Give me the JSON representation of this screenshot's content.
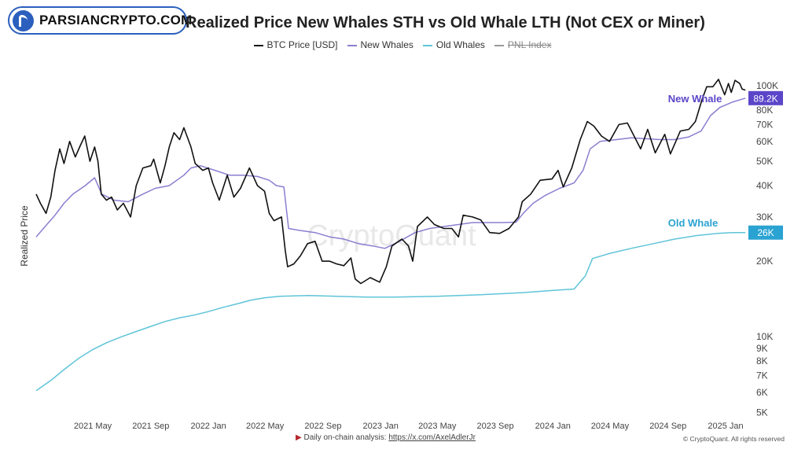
{
  "logo": {
    "text": "PARSIANCRYPTO.COM"
  },
  "chart_data": {
    "type": "line",
    "title": "Realized Price New Whales STH vs Old Whale LTH (Not CEX or Miner)",
    "ylabel": "Realized Price",
    "yscale": "log",
    "ylim": [
      4800,
      118000
    ],
    "xlim": [
      "2021-01-01",
      "2025-02-15"
    ],
    "x_ticks": [
      {
        "date": "2021-05-01",
        "label": "2021 May"
      },
      {
        "date": "2021-09-01",
        "label": "2021 Sep"
      },
      {
        "date": "2022-01-01",
        "label": "2022 Jan"
      },
      {
        "date": "2022-05-01",
        "label": "2022 May"
      },
      {
        "date": "2022-09-01",
        "label": "2022 Sep"
      },
      {
        "date": "2023-01-01",
        "label": "2023 Jan"
      },
      {
        "date": "2023-05-01",
        "label": "2023 May"
      },
      {
        "date": "2023-09-01",
        "label": "2023 Sep"
      },
      {
        "date": "2024-01-01",
        "label": "2024 Jan"
      },
      {
        "date": "2024-05-01",
        "label": "2024 May"
      },
      {
        "date": "2024-09-01",
        "label": "2024 Sep"
      },
      {
        "date": "2025-01-01",
        "label": "2025 Jan"
      }
    ],
    "y_ticks": [
      {
        "value": 100000,
        "label": "100K"
      },
      {
        "value": 80000,
        "label": "80K"
      },
      {
        "value": 70000,
        "label": "70K"
      },
      {
        "value": 60000,
        "label": "60K"
      },
      {
        "value": 50000,
        "label": "50K"
      },
      {
        "value": 40000,
        "label": "40K"
      },
      {
        "value": 30000,
        "label": "30K"
      },
      {
        "value": 20000,
        "label": "20K"
      },
      {
        "value": 10000,
        "label": "10K"
      },
      {
        "value": 9000,
        "label": "9K"
      },
      {
        "value": 8000,
        "label": "8K"
      },
      {
        "value": 7000,
        "label": "7K"
      },
      {
        "value": 6000,
        "label": "6K"
      },
      {
        "value": 5000,
        "label": "5K"
      }
    ],
    "legend": [
      {
        "name": "BTC Price [USD]",
        "color": "#111111",
        "enabled": true
      },
      {
        "name": "New Whales",
        "color": "#8a7fd0",
        "enabled": true
      },
      {
        "name": "Old Whales",
        "color": "#5fc4d8",
        "enabled": true
      },
      {
        "name": "PNL Index",
        "color": "#999999",
        "enabled": false
      }
    ],
    "series": [
      {
        "name": "BTC Price [USD]",
        "color": "#111111",
        "points": [
          [
            "2021-01-01",
            37000
          ],
          [
            "2021-01-10",
            34000
          ],
          [
            "2021-01-22",
            31000
          ],
          [
            "2021-02-01",
            36000
          ],
          [
            "2021-02-10",
            46000
          ],
          [
            "2021-02-20",
            56000
          ],
          [
            "2021-03-01",
            49000
          ],
          [
            "2021-03-13",
            60000
          ],
          [
            "2021-03-25",
            52000
          ],
          [
            "2021-04-05",
            58000
          ],
          [
            "2021-04-14",
            63000
          ],
          [
            "2021-04-25",
            50000
          ],
          [
            "2021-05-05",
            57000
          ],
          [
            "2021-05-12",
            50000
          ],
          [
            "2021-05-19",
            37000
          ],
          [
            "2021-05-30",
            35000
          ],
          [
            "2021-06-10",
            36000
          ],
          [
            "2021-06-22",
            32000
          ],
          [
            "2021-07-05",
            34000
          ],
          [
            "2021-07-20",
            30000
          ],
          [
            "2021-08-01",
            40000
          ],
          [
            "2021-08-15",
            47000
          ],
          [
            "2021-09-01",
            48000
          ],
          [
            "2021-09-07",
            51000
          ],
          [
            "2021-09-21",
            41000
          ],
          [
            "2021-10-01",
            48000
          ],
          [
            "2021-10-10",
            57000
          ],
          [
            "2021-10-20",
            65000
          ],
          [
            "2021-11-01",
            61000
          ],
          [
            "2021-11-10",
            68000
          ],
          [
            "2021-11-25",
            57000
          ],
          [
            "2021-12-04",
            49000
          ],
          [
            "2021-12-20",
            46000
          ],
          [
            "2022-01-01",
            47000
          ],
          [
            "2022-01-10",
            41000
          ],
          [
            "2022-01-24",
            35000
          ],
          [
            "2022-02-10",
            44000
          ],
          [
            "2022-02-24",
            36000
          ],
          [
            "2022-03-10",
            39000
          ],
          [
            "2022-03-29",
            47000
          ],
          [
            "2022-04-15",
            40000
          ],
          [
            "2022-04-30",
            38000
          ],
          [
            "2022-05-10",
            31000
          ],
          [
            "2022-05-20",
            29000
          ],
          [
            "2022-06-05",
            30000
          ],
          [
            "2022-06-13",
            22000
          ],
          [
            "2022-06-18",
            19000
          ],
          [
            "2022-07-01",
            19500
          ],
          [
            "2022-07-15",
            21000
          ],
          [
            "2022-07-30",
            23500
          ],
          [
            "2022-08-15",
            24000
          ],
          [
            "2022-08-30",
            20000
          ],
          [
            "2022-09-15",
            20000
          ],
          [
            "2022-09-30",
            19500
          ],
          [
            "2022-10-15",
            19200
          ],
          [
            "2022-10-30",
            20600
          ],
          [
            "2022-11-08",
            17000
          ],
          [
            "2022-11-20",
            16300
          ],
          [
            "2022-12-10",
            17200
          ],
          [
            "2022-12-30",
            16500
          ],
          [
            "2023-01-13",
            19000
          ],
          [
            "2023-01-25",
            23000
          ],
          [
            "2023-02-15",
            24500
          ],
          [
            "2023-03-01",
            23000
          ],
          [
            "2023-03-10",
            20000
          ],
          [
            "2023-03-20",
            27500
          ],
          [
            "2023-04-10",
            30000
          ],
          [
            "2023-04-25",
            28000
          ],
          [
            "2023-05-15",
            27000
          ],
          [
            "2023-06-01",
            27000
          ],
          [
            "2023-06-15",
            25000
          ],
          [
            "2023-06-25",
            30500
          ],
          [
            "2023-07-15",
            30000
          ],
          [
            "2023-08-01",
            29200
          ],
          [
            "2023-08-20",
            26000
          ],
          [
            "2023-09-10",
            25800
          ],
          [
            "2023-09-30",
            27000
          ],
          [
            "2023-10-20",
            30000
          ],
          [
            "2023-10-28",
            34500
          ],
          [
            "2023-11-15",
            37000
          ],
          [
            "2023-12-05",
            42000
          ],
          [
            "2023-12-30",
            42500
          ],
          [
            "2024-01-12",
            46000
          ],
          [
            "2024-01-23",
            39500
          ],
          [
            "2024-02-10",
            47000
          ],
          [
            "2024-02-28",
            61000
          ],
          [
            "2024-03-14",
            72000
          ],
          [
            "2024-03-28",
            69000
          ],
          [
            "2024-04-13",
            63000
          ],
          [
            "2024-04-30",
            60000
          ],
          [
            "2024-05-20",
            70000
          ],
          [
            "2024-06-07",
            71000
          ],
          [
            "2024-06-25",
            61000
          ],
          [
            "2024-07-05",
            56000
          ],
          [
            "2024-07-20",
            67000
          ],
          [
            "2024-08-05",
            54000
          ],
          [
            "2024-08-25",
            64000
          ],
          [
            "2024-09-06",
            53500
          ],
          [
            "2024-09-27",
            66000
          ],
          [
            "2024-10-15",
            67000
          ],
          [
            "2024-10-29",
            72000
          ],
          [
            "2024-11-12",
            88000
          ],
          [
            "2024-11-22",
            99000
          ],
          [
            "2024-12-05",
            99000
          ],
          [
            "2024-12-17",
            106000
          ],
          [
            "2024-12-30",
            92000
          ],
          [
            "2025-01-07",
            102000
          ],
          [
            "2025-01-13",
            94000
          ],
          [
            "2025-01-21",
            105000
          ],
          [
            "2025-01-31",
            102000
          ],
          [
            "2025-02-05",
            97000
          ],
          [
            "2025-02-12",
            96000
          ]
        ]
      },
      {
        "name": "New Whales",
        "color": "#8a7fd0",
        "points": [
          [
            "2021-01-01",
            25000
          ],
          [
            "2021-01-20",
            27500
          ],
          [
            "2021-02-10",
            30500
          ],
          [
            "2021-03-01",
            34000
          ],
          [
            "2021-03-20",
            37000
          ],
          [
            "2021-04-15",
            40000
          ],
          [
            "2021-05-05",
            43000
          ],
          [
            "2021-05-20",
            37000
          ],
          [
            "2021-06-15",
            35000
          ],
          [
            "2021-07-15",
            34500
          ],
          [
            "2021-08-15",
            37000
          ],
          [
            "2021-09-10",
            39000
          ],
          [
            "2021-10-10",
            40000
          ],
          [
            "2021-11-10",
            44000
          ],
          [
            "2021-11-25",
            47000
          ],
          [
            "2021-12-15",
            48000
          ],
          [
            "2022-01-15",
            46000
          ],
          [
            "2022-02-15",
            44000
          ],
          [
            "2022-03-15",
            44000
          ],
          [
            "2022-04-15",
            43500
          ],
          [
            "2022-05-10",
            42000
          ],
          [
            "2022-05-25",
            40000
          ],
          [
            "2022-06-10",
            39500
          ],
          [
            "2022-06-20",
            27000
          ],
          [
            "2022-07-15",
            26500
          ],
          [
            "2022-08-15",
            26000
          ],
          [
            "2022-09-15",
            25000
          ],
          [
            "2022-10-15",
            24500
          ],
          [
            "2022-11-15",
            23500
          ],
          [
            "2022-12-15",
            23000
          ],
          [
            "2023-01-10",
            22500
          ],
          [
            "2023-02-10",
            24000
          ],
          [
            "2023-03-15",
            26000
          ],
          [
            "2023-04-15",
            27000
          ],
          [
            "2023-05-15",
            27500
          ],
          [
            "2023-06-15",
            28000
          ],
          [
            "2023-07-15",
            28500
          ],
          [
            "2023-08-15",
            28500
          ],
          [
            "2023-09-15",
            28500
          ],
          [
            "2023-10-15",
            28600
          ],
          [
            "2023-10-30",
            31000
          ],
          [
            "2023-11-20",
            34000
          ],
          [
            "2023-12-15",
            36500
          ],
          [
            "2024-01-15",
            39000
          ],
          [
            "2024-02-15",
            41000
          ],
          [
            "2024-03-05",
            46000
          ],
          [
            "2024-03-20",
            56000
          ],
          [
            "2024-04-10",
            60000
          ],
          [
            "2024-05-15",
            61000
          ],
          [
            "2024-06-15",
            62000
          ],
          [
            "2024-07-15",
            61500
          ],
          [
            "2024-08-15",
            61000
          ],
          [
            "2024-09-15",
            61000
          ],
          [
            "2024-10-15",
            62500
          ],
          [
            "2024-11-10",
            66000
          ],
          [
            "2024-11-30",
            76000
          ],
          [
            "2024-12-20",
            82000
          ],
          [
            "2025-01-15",
            86000
          ],
          [
            "2025-02-12",
            89200
          ]
        ]
      },
      {
        "name": "Old Whales",
        "color": "#5fc4d8",
        "points": [
          [
            "2021-01-01",
            6100
          ],
          [
            "2021-02-01",
            6700
          ],
          [
            "2021-03-01",
            7400
          ],
          [
            "2021-04-01",
            8200
          ],
          [
            "2021-05-01",
            8900
          ],
          [
            "2021-06-01",
            9500
          ],
          [
            "2021-07-01",
            10000
          ],
          [
            "2021-08-01",
            10500
          ],
          [
            "2021-09-01",
            11000
          ],
          [
            "2021-10-01",
            11500
          ],
          [
            "2021-11-01",
            11900
          ],
          [
            "2021-12-01",
            12200
          ],
          [
            "2022-01-01",
            12600
          ],
          [
            "2022-02-01",
            13100
          ],
          [
            "2022-03-01",
            13500
          ],
          [
            "2022-04-01",
            14000
          ],
          [
            "2022-05-01",
            14300
          ],
          [
            "2022-06-01",
            14500
          ],
          [
            "2022-08-01",
            14600
          ],
          [
            "2022-10-01",
            14500
          ],
          [
            "2022-12-01",
            14400
          ],
          [
            "2023-02-01",
            14400
          ],
          [
            "2023-05-01",
            14500
          ],
          [
            "2023-08-01",
            14700
          ],
          [
            "2023-11-01",
            15000
          ],
          [
            "2024-01-01",
            15300
          ],
          [
            "2024-02-15",
            15500
          ],
          [
            "2024-03-10",
            17500
          ],
          [
            "2024-03-25",
            20500
          ],
          [
            "2024-05-01",
            21500
          ],
          [
            "2024-06-15",
            22500
          ],
          [
            "2024-08-01",
            23500
          ],
          [
            "2024-09-15",
            24500
          ],
          [
            "2024-11-01",
            25300
          ],
          [
            "2024-12-15",
            25800
          ],
          [
            "2025-01-15",
            26000
          ],
          [
            "2025-02-12",
            26000
          ]
        ]
      }
    ],
    "badges": [
      {
        "series": "New Whales",
        "value": 89200,
        "label": "89.2K",
        "color": "#5b45c8"
      },
      {
        "series": "Old Whales",
        "value": 26000,
        "label": "26K",
        "color": "#2aa3d2"
      }
    ],
    "annotations": [
      {
        "text": "New Whale",
        "date": "2024-09-01",
        "value": 86000,
        "color": "#5b45c8"
      },
      {
        "text": "Old Whale",
        "date": "2024-09-01",
        "value": 27500,
        "color": "#2aa3d2"
      }
    ],
    "watermark": "CryptoQuant"
  },
  "footer": {
    "analysis_label": "Daily on-chain analysis: ",
    "analysis_link": "https://x.com/AxelAdlerJr",
    "copyright": "© CryptoQuant. All rights reserved"
  }
}
